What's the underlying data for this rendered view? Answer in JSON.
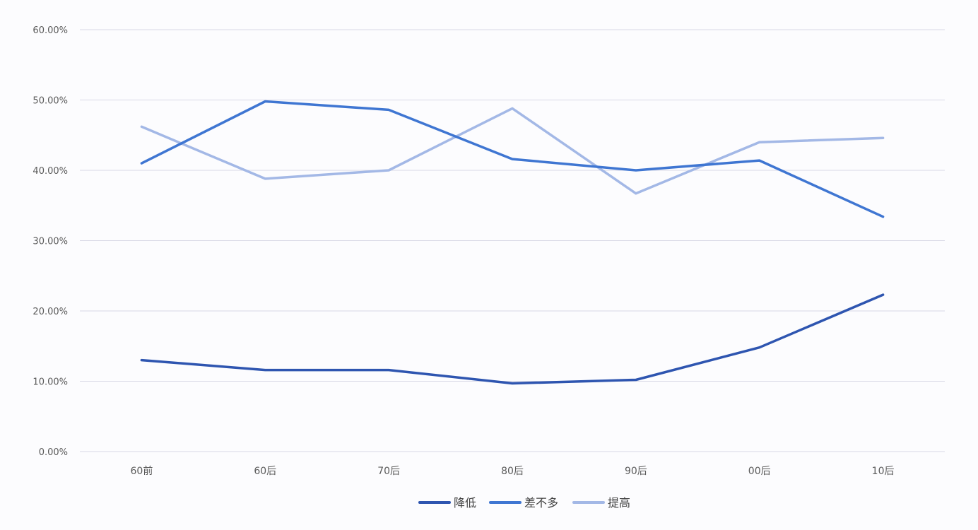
{
  "chart_data": {
    "type": "line",
    "title": "",
    "xlabel": "",
    "ylabel": "",
    "categories": [
      "60前",
      "60后",
      "70后",
      "80后",
      "90后",
      "00后",
      "10后"
    ],
    "ylim": [
      0,
      60
    ],
    "yticks": [
      {
        "value": 0,
        "label": "0.00%"
      },
      {
        "value": 10,
        "label": "10.00%"
      },
      {
        "value": 20,
        "label": "20.00%"
      },
      {
        "value": 30,
        "label": "30.00%"
      },
      {
        "value": 40,
        "label": "40.00%"
      },
      {
        "value": 50,
        "label": "50.00%"
      },
      {
        "value": 60,
        "label": "60.00%"
      }
    ],
    "grid": true,
    "legend_position": "bottom",
    "series": [
      {
        "name": "降低",
        "color": "#2e55b0",
        "values": [
          13.0,
          11.6,
          11.6,
          9.7,
          10.2,
          14.8,
          22.3
        ]
      },
      {
        "name": "差不多",
        "color": "#3f76d2",
        "values": [
          41.0,
          49.8,
          48.6,
          41.6,
          40.0,
          41.4,
          33.4
        ]
      },
      {
        "name": "提高",
        "color": "#a3b8e6",
        "values": [
          46.2,
          38.8,
          40.0,
          48.8,
          36.7,
          44.0,
          44.6
        ]
      }
    ]
  }
}
